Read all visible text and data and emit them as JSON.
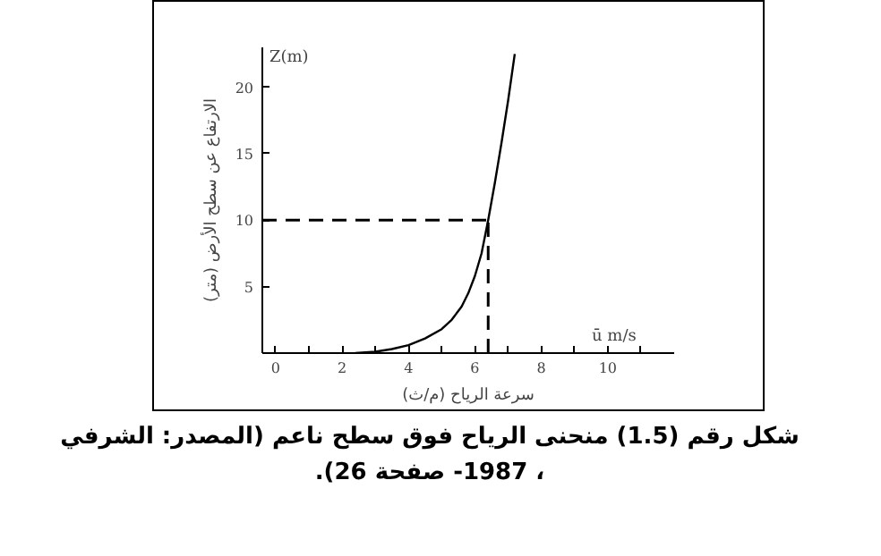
{
  "chart_data": {
    "type": "line",
    "title": "شكل رقم (1.5) منحنى الرياح فوق سطح ناعم (المصدر: الشرفي ، 1987- صفحة 26).",
    "xlabel": "سرعة الرياح (م/ث)",
    "ylabel": "الارتفاع عن سطح الأرض (متر)",
    "annotations": [
      "Z(m)",
      "ū   m/s"
    ],
    "x": [
      2.4,
      3.0,
      3.5,
      4.0,
      4.5,
      5.0,
      5.3,
      5.6,
      5.8,
      6.0,
      6.2,
      6.4,
      6.6,
      6.8,
      7.0,
      7.2
    ],
    "series": [
      {
        "color": "#000000",
        "values": [
          0,
          0.1,
          0.3,
          0.6,
          1.1,
          1.8,
          2.5,
          3.5,
          4.5,
          5.8,
          7.5,
          10,
          12.8,
          15.8,
          19,
          22.5
        ]
      }
    ],
    "xlim": [
      -0.4,
      12
    ],
    "ylim": [
      0,
      23
    ],
    "xticks": [
      0,
      {
        "value": 1,
        "label": null
      },
      2,
      {
        "value": 3,
        "label": null
      },
      4,
      {
        "value": 5,
        "label": null
      },
      6,
      {
        "value": 7,
        "label": null
      },
      8,
      {
        "value": 9,
        "label": null
      },
      10,
      {
        "value": 11,
        "label": null
      }
    ],
    "yticks": [
      5,
      10,
      15,
      20
    ],
    "ref_lines": [
      {
        "axis": "y",
        "value": 10,
        "line_style": "dashed",
        "color": "#000000"
      },
      {
        "axis": "x",
        "value": 6.4,
        "line_style": "dashed",
        "color": "#000000"
      }
    ],
    "grid": false,
    "marker": "none",
    "line_style": "solid"
  }
}
